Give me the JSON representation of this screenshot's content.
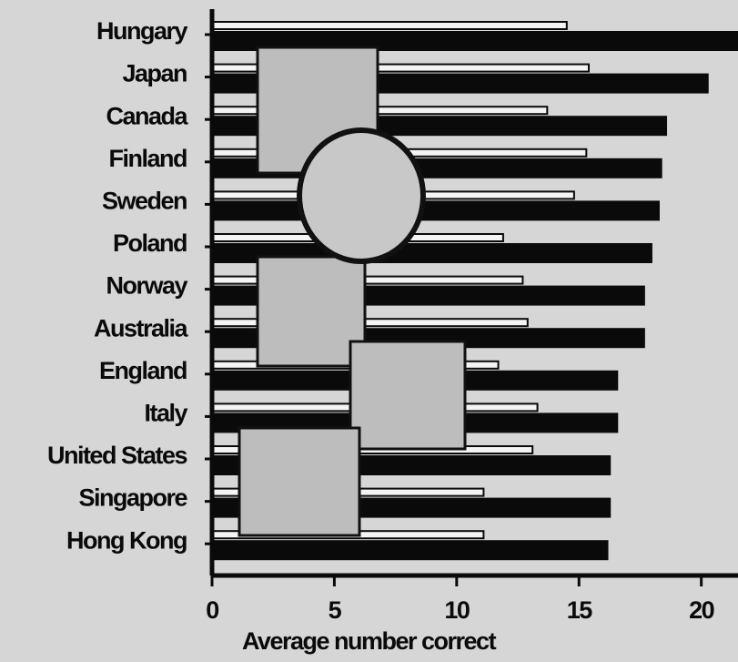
{
  "chart_data": {
    "type": "hbar",
    "categories": [
      "Hungary",
      "Japan",
      "Canada",
      "Finland",
      "Sweden",
      "Poland",
      "Norway",
      "Australia",
      "England",
      "Italy",
      "United States",
      "Singapore",
      "Hong Kong"
    ],
    "series": [
      {
        "color": "#f4f4f4",
        "values": [
          14.5,
          15.4,
          13.7,
          15.3,
          14.8,
          11.9,
          12.7,
          12.9,
          11.7,
          13.3,
          13.1,
          11.1,
          11.1
        ]
      },
      {
        "color": "#0a0a0a",
        "values": [
          21.5,
          20.3,
          18.6,
          18.4,
          18.3,
          18.0,
          17.7,
          17.7,
          16.6,
          16.6,
          16.3,
          16.3,
          16.2
        ]
      }
    ],
    "xlim": [
      0,
      21.5
    ],
    "xticks": [
      0,
      5,
      10,
      15,
      20
    ],
    "xlabel": "Average number correct"
  }
}
